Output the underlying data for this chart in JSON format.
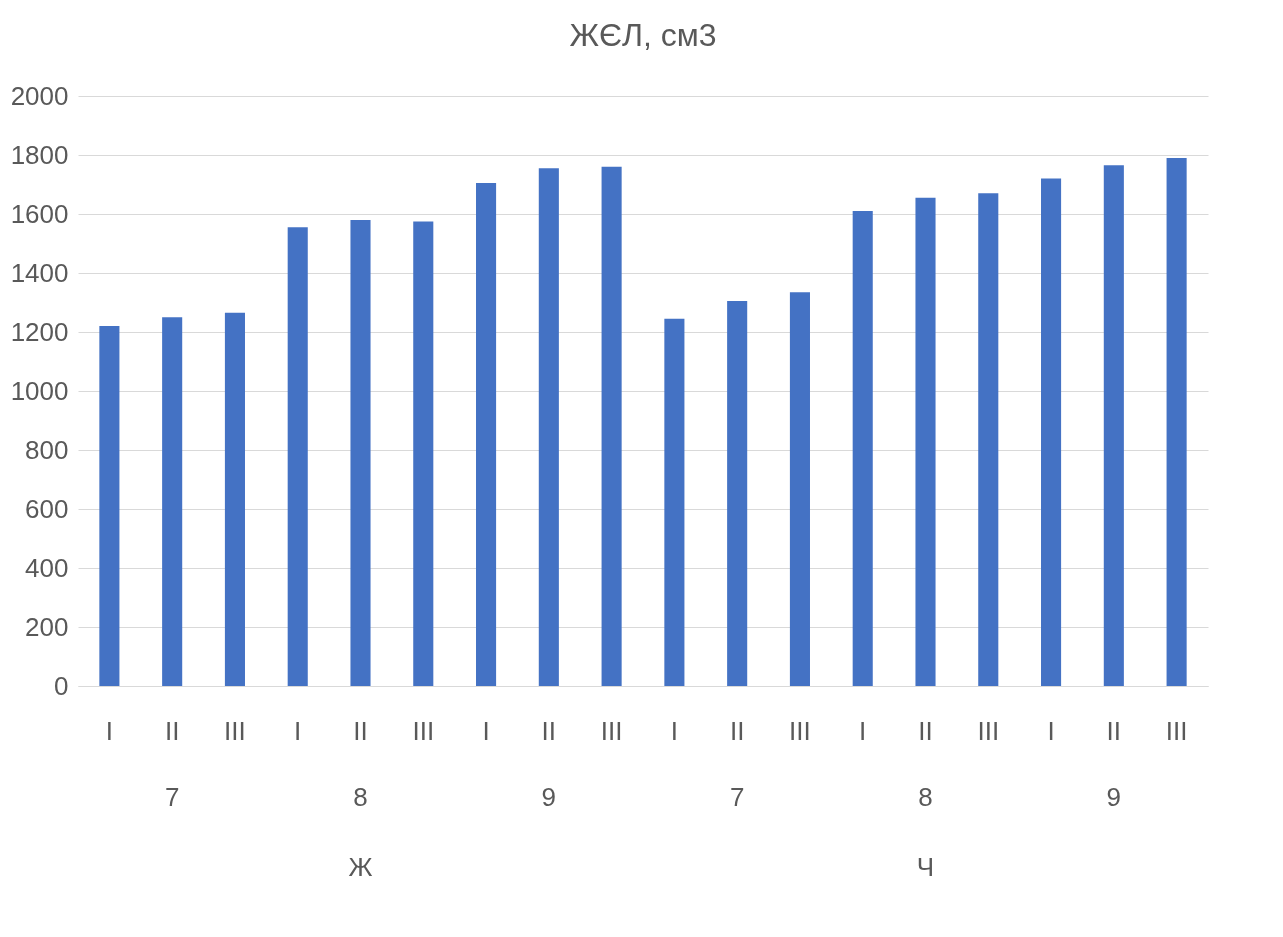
{
  "chart_data": {
    "type": "bar",
    "title": "ЖЄЛ, см3",
    "categories": [
      "I",
      "II",
      "III",
      "I",
      "II",
      "III",
      "I",
      "II",
      "III",
      "I",
      "II",
      "III",
      "I",
      "II",
      "III",
      "I",
      "II",
      "III"
    ],
    "values": [
      1220,
      1250,
      1265,
      1555,
      1580,
      1575,
      1705,
      1755,
      1760,
      1245,
      1305,
      1335,
      1610,
      1655,
      1670,
      1720,
      1765,
      1790
    ],
    "color": "#4472c4",
    "ylim": [
      0,
      2000
    ],
    "yticks": [
      0,
      200,
      400,
      600,
      800,
      1000,
      1200,
      1400,
      1600,
      1800,
      2000
    ],
    "grid": "y",
    "annotations": [
      "7",
      "8",
      "9",
      "7",
      "8",
      "9",
      "Ж",
      "Ч"
    ]
  }
}
